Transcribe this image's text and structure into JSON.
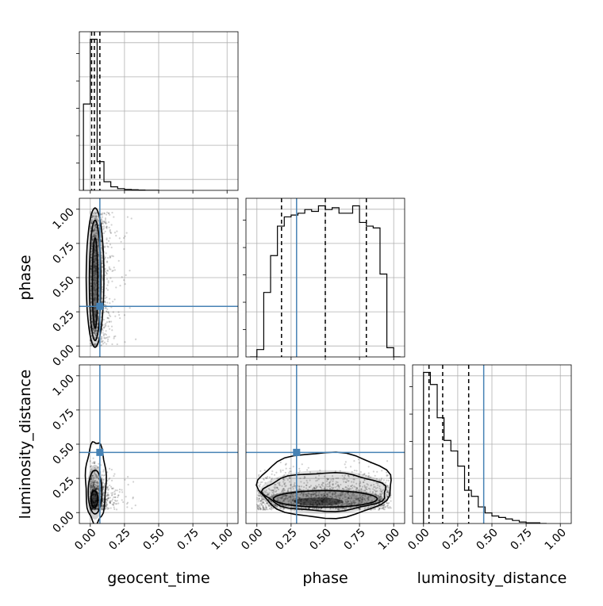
{
  "chart_data": {
    "type": "corner",
    "parameters": [
      "geocent_time",
      "phase",
      "luminosity_distance"
    ],
    "axis_range": [
      -0.08,
      1.08
    ],
    "ticks": [
      0.0,
      0.25,
      0.5,
      0.75,
      1.0
    ],
    "tick_labels": [
      "0.00",
      "0.25",
      "0.50",
      "0.75",
      "1.00"
    ],
    "truth_values": {
      "geocent_time": 0.07,
      "phase": 0.29,
      "luminosity_distance": 0.44
    },
    "truth_color": "#4682b4",
    "grid": true,
    "histograms": {
      "geocent_time": {
        "bin_edges": [
          -0.05,
          0.0,
          0.05,
          0.1,
          0.15,
          0.2,
          0.25,
          0.3,
          0.35,
          0.4,
          0.45,
          0.5
        ],
        "counts": [
          0.6,
          1.05,
          0.2,
          0.06,
          0.025,
          0.012,
          0.006,
          0.004,
          0.002,
          0.001,
          0.001
        ],
        "quantiles": [
          0.01,
          0.03,
          0.07
        ]
      },
      "phase": {
        "bin_edges": [
          -0.05,
          0.0,
          0.05,
          0.1,
          0.15,
          0.2,
          0.25,
          0.3,
          0.35,
          0.4,
          0.45,
          0.5,
          0.55,
          0.6,
          0.65,
          0.7,
          0.75,
          0.8,
          0.85,
          0.9,
          0.95,
          1.0,
          1.05
        ],
        "counts": [
          0.0,
          0.04,
          0.35,
          0.55,
          0.71,
          0.76,
          0.77,
          0.78,
          0.8,
          0.79,
          0.82,
          0.8,
          0.81,
          0.78,
          0.78,
          0.82,
          0.73,
          0.71,
          0.7,
          0.45,
          0.05,
          0.0
        ],
        "quantiles": [
          0.18,
          0.5,
          0.8
        ]
      },
      "luminosity_distance": {
        "bin_edges": [
          0.0,
          0.05,
          0.1,
          0.15,
          0.2,
          0.25,
          0.3,
          0.35,
          0.4,
          0.45,
          0.5,
          0.55,
          0.6,
          0.65,
          0.7,
          0.75,
          0.8,
          0.85,
          0.9
        ],
        "counts": [
          1.0,
          0.92,
          0.7,
          0.55,
          0.48,
          0.38,
          0.22,
          0.18,
          0.11,
          0.07,
          0.05,
          0.04,
          0.03,
          0.02,
          0.01,
          0.005,
          0.005,
          0.0
        ],
        "quantiles": [
          0.04,
          0.14,
          0.33
        ]
      }
    }
  }
}
